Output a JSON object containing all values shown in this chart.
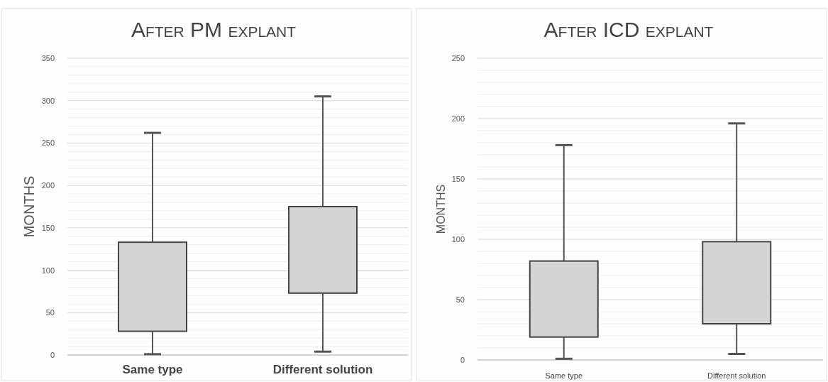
{
  "chart_data": [
    {
      "type": "box",
      "title": "After PM explant",
      "ylabel": "MONTHS",
      "categories": [
        "Same type",
        "Different solution"
      ],
      "ylim": [
        0,
        350
      ],
      "grid": "y",
      "yticks": [
        0,
        {
          "value": 10,
          "label": null
        },
        {
          "value": 20,
          "label": null
        },
        {
          "value": 30,
          "label": null
        },
        {
          "value": 40,
          "label": null
        },
        50,
        {
          "value": 60,
          "label": null
        },
        {
          "value": 70,
          "label": null
        },
        {
          "value": 80,
          "label": null
        },
        {
          "value": 90,
          "label": null
        },
        100,
        {
          "value": 110,
          "label": null
        },
        {
          "value": 120,
          "label": null
        },
        {
          "value": 130,
          "label": null
        },
        {
          "value": 140,
          "label": null
        },
        150,
        {
          "value": 160,
          "label": null
        },
        {
          "value": 170,
          "label": null
        },
        {
          "value": 180,
          "label": null
        },
        {
          "value": 190,
          "label": null
        },
        200,
        {
          "value": 210,
          "label": null
        },
        {
          "value": 220,
          "label": null
        },
        {
          "value": 230,
          "label": null
        },
        {
          "value": 240,
          "label": null
        },
        250,
        {
          "value": 260,
          "label": null
        },
        {
          "value": 270,
          "label": null
        },
        {
          "value": 280,
          "label": null
        },
        {
          "value": 290,
          "label": null
        },
        300,
        {
          "value": 310,
          "label": null
        },
        {
          "value": 320,
          "label": null
        },
        {
          "value": 330,
          "label": null
        },
        {
          "value": 340,
          "label": null
        },
        350
      ],
      "series": [
        {
          "color": "#d4d4d4",
          "boxes": [
            {
              "low": 1,
              "q1": 28,
              "q3": 133,
              "high": 262
            },
            {
              "low": 4,
              "q1": 73,
              "q3": 175,
              "high": 305
            }
          ]
        }
      ]
    },
    {
      "type": "box",
      "title": "After ICD explant",
      "ylabel": "MONTHS",
      "categories": [
        "Same type",
        "Different solution"
      ],
      "ylim": [
        0,
        250
      ],
      "grid": "y",
      "yticks": [
        0,
        {
          "value": 10,
          "label": null
        },
        {
          "value": 20,
          "label": null
        },
        {
          "value": 30,
          "label": null
        },
        {
          "value": 40,
          "label": null
        },
        50,
        {
          "value": 60,
          "label": null
        },
        {
          "value": 70,
          "label": null
        },
        {
          "value": 80,
          "label": null
        },
        {
          "value": 90,
          "label": null
        },
        100,
        {
          "value": 110,
          "label": null
        },
        {
          "value": 120,
          "label": null
        },
        {
          "value": 130,
          "label": null
        },
        {
          "value": 140,
          "label": null
        },
        150,
        {
          "value": 160,
          "label": null
        },
        {
          "value": 170,
          "label": null
        },
        {
          "value": 180,
          "label": null
        },
        {
          "value": 190,
          "label": null
        },
        200,
        {
          "value": 210,
          "label": null
        },
        {
          "value": 220,
          "label": null
        },
        {
          "value": 230,
          "label": null
        },
        {
          "value": 240,
          "label": null
        },
        250
      ],
      "series": [
        {
          "color": "#d4d4d4",
          "boxes": [
            {
              "low": 1,
              "q1": 19,
              "q3": 82,
              "high": 178
            },
            {
              "low": 5,
              "q1": 30,
              "q3": 98,
              "high": 196
            }
          ]
        }
      ]
    }
  ]
}
